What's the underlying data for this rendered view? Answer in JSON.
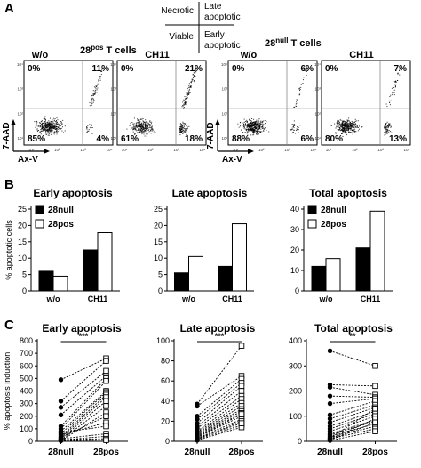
{
  "panel_labels": {
    "a": "A",
    "b": "B",
    "c": "C"
  },
  "legend_quadrants": {
    "top_left": "Necrotic",
    "top_right_line1": "Late",
    "top_right_line2": "apoptotic",
    "bottom_left": "Viable",
    "bottom_right_line1": "Early",
    "bottom_right_line2": "apoptotic"
  },
  "flow": {
    "group_28pos_prefix": "28",
    "group_28pos_sup": "pos",
    "group_28pos_suffix": " T cells",
    "group_28null_prefix": "28",
    "group_28null_sup": "null",
    "group_28null_suffix": " T cells",
    "condition_wo": "w/o",
    "condition_ch11": "CH11",
    "y_axis_label": "7-AAD",
    "x_axis_label": "Ax-V",
    "tick_labels": [
      "10¹",
      "10²",
      "10³",
      "10⁴"
    ],
    "plots": [
      {
        "condition": "w/o",
        "group": "28pos",
        "q_ul": "0%",
        "q_ur": "11%",
        "q_ll": "85%",
        "q_lr": "4%"
      },
      {
        "condition": "CH11",
        "group": "28pos",
        "q_ul": "0%",
        "q_ur": "21%",
        "q_ll": "61%",
        "q_lr": "18%"
      },
      {
        "condition": "w/o",
        "group": "28null",
        "q_ul": "0%",
        "q_ur": "6%",
        "q_ll": "88%",
        "q_lr": "6%"
      },
      {
        "condition": "CH11",
        "group": "28null",
        "q_ul": "0%",
        "q_ur": "7%",
        "q_ll": "80%",
        "q_lr": "13%"
      }
    ]
  },
  "chart_data": [
    {
      "type": "bar",
      "panel": "B",
      "title": "Early apoptosis",
      "ylabel": "% apoptotic cells",
      "categories": [
        "w/o",
        "CH11"
      ],
      "ylim": [
        0,
        25
      ],
      "yticks": [
        0,
        5,
        10,
        15,
        20,
        25
      ],
      "series": [
        {
          "name": "28null",
          "values": [
            6.0,
            12.5
          ],
          "color": "#000000"
        },
        {
          "name": "28pos",
          "values": [
            4.5,
            17.8
          ],
          "color": "#ffffff"
        }
      ],
      "legend": "top-left"
    },
    {
      "type": "bar",
      "panel": "B",
      "title": "Late apoptosis",
      "categories": [
        "w/o",
        "CH11"
      ],
      "ylim": [
        0,
        25
      ],
      "yticks": [
        0,
        5,
        10,
        15,
        20,
        25
      ],
      "series": [
        {
          "name": "28null",
          "values": [
            5.5,
            7.5
          ],
          "color": "#000000"
        },
        {
          "name": "28pos",
          "values": [
            10.5,
            20.5
          ],
          "color": "#ffffff"
        }
      ]
    },
    {
      "type": "bar",
      "panel": "B",
      "title": "Total apoptosis",
      "categories": [
        "w/o",
        "CH11"
      ],
      "ylim": [
        0,
        40
      ],
      "yticks": [
        0,
        10,
        20,
        30,
        40
      ],
      "series": [
        {
          "name": "28null",
          "values": [
            12.0,
            21.0
          ],
          "color": "#000000"
        },
        {
          "name": "28pos",
          "values": [
            15.8,
            39.0
          ],
          "color": "#ffffff"
        }
      ],
      "legend": "top-left"
    },
    {
      "type": "scatter",
      "panel": "C",
      "title": "Early apoptosis",
      "ylabel": "% apoptosis induction",
      "categories": [
        "28null",
        "28pos"
      ],
      "ylim": [
        0,
        800
      ],
      "yticks": [
        0,
        100,
        200,
        300,
        400,
        500,
        600,
        700,
        800
      ],
      "significance": "***",
      "pairs": [
        [
          490,
          660
        ],
        [
          320,
          640
        ],
        [
          270,
          560
        ],
        [
          210,
          520
        ],
        [
          120,
          500
        ],
        [
          100,
          480
        ],
        [
          80,
          400
        ],
        [
          60,
          390
        ],
        [
          40,
          370
        ],
        [
          30,
          350
        ],
        [
          20,
          320
        ],
        [
          10,
          280
        ],
        [
          5,
          230
        ],
        [
          30,
          200
        ],
        [
          50,
          150
        ],
        [
          70,
          120
        ],
        [
          20,
          60
        ],
        [
          10,
          40
        ],
        [
          15,
          20
        ],
        [
          5,
          10
        ]
      ]
    },
    {
      "type": "scatter",
      "panel": "C",
      "title": "Late apoptosis",
      "categories": [
        "28null",
        "28pos"
      ],
      "ylim": [
        0,
        100
      ],
      "yticks": [
        0,
        20,
        40,
        60,
        80,
        100
      ],
      "significance": "***",
      "pairs": [
        [
          37,
          95
        ],
        [
          35,
          65
        ],
        [
          25,
          62
        ],
        [
          22,
          58
        ],
        [
          18,
          55
        ],
        [
          15,
          50
        ],
        [
          13,
          45
        ],
        [
          10,
          42
        ],
        [
          9,
          38
        ],
        [
          8,
          35
        ],
        [
          7,
          32
        ],
        [
          6,
          30
        ],
        [
          5,
          28
        ],
        [
          4,
          25
        ],
        [
          3,
          22
        ],
        [
          2,
          20
        ],
        [
          2,
          16
        ],
        [
          1,
          14
        ],
        [
          3,
          18
        ],
        [
          4,
          27
        ]
      ]
    },
    {
      "type": "scatter",
      "panel": "C",
      "title": "Total apoptosis",
      "categories": [
        "28null",
        "28pos"
      ],
      "ylim": [
        0,
        400
      ],
      "yticks": [
        0,
        100,
        200,
        300,
        400
      ],
      "significance": "**",
      "pairs": [
        [
          360,
          300
        ],
        [
          225,
          220
        ],
        [
          215,
          185
        ],
        [
          180,
          175
        ],
        [
          150,
          170
        ],
        [
          105,
          160
        ],
        [
          90,
          145
        ],
        [
          75,
          135
        ],
        [
          60,
          120
        ],
        [
          50,
          110
        ],
        [
          40,
          100
        ],
        [
          30,
          85
        ],
        [
          25,
          80
        ],
        [
          20,
          70
        ],
        [
          15,
          60
        ],
        [
          10,
          50
        ],
        [
          8,
          90
        ],
        [
          5,
          75
        ],
        [
          3,
          40
        ],
        [
          12,
          130
        ]
      ]
    }
  ]
}
